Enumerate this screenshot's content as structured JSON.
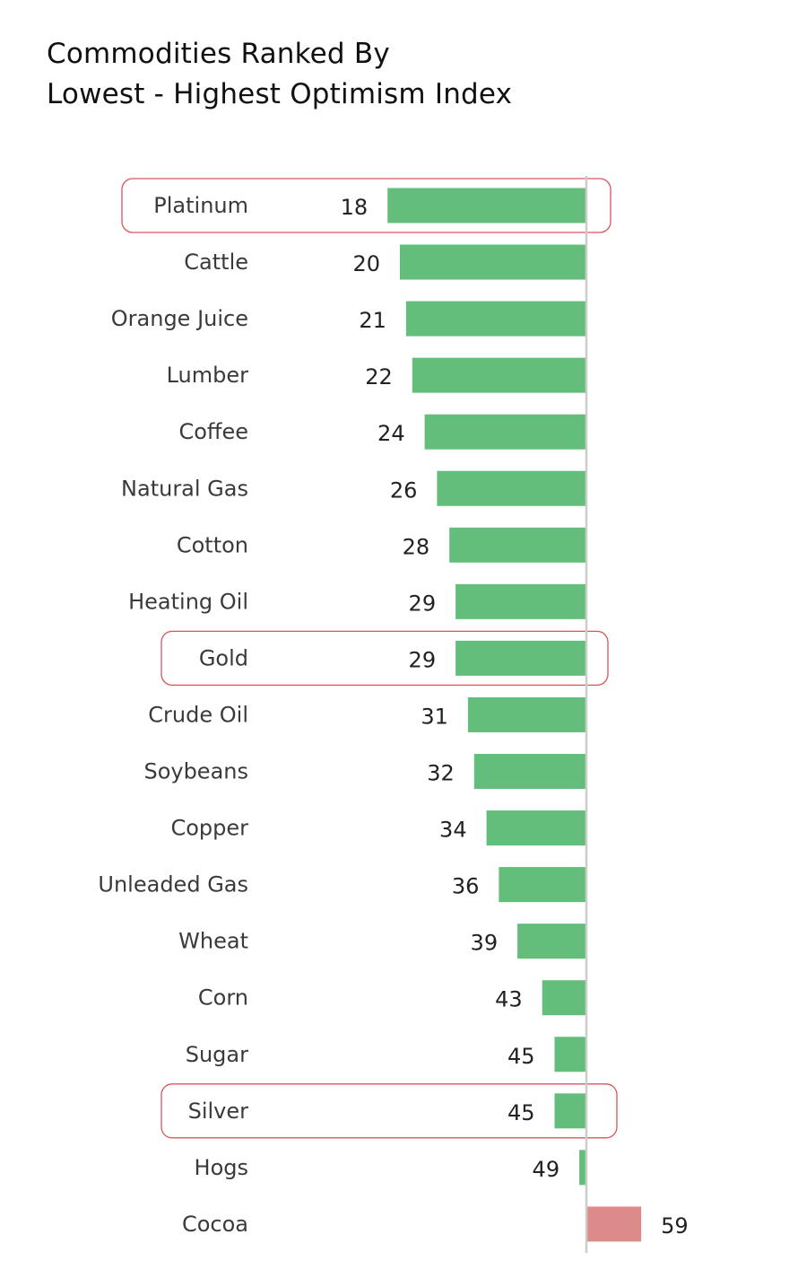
{
  "chart_data": {
    "type": "bar",
    "title_line1": "Commodities Ranked By",
    "title_line2": "Lowest - Highest Optimism Index",
    "xlabel": "",
    "ylabel": "",
    "baseline": 50,
    "categories": [
      "Platinum",
      "Cattle",
      "Orange Juice",
      "Lumber",
      "Coffee",
      "Natural Gas",
      "Cotton",
      "Heating Oil",
      "Gold",
      "Crude Oil",
      "Soybeans",
      "Copper",
      "Unleaded Gas",
      "Wheat",
      "Corn",
      "Sugar",
      "Silver",
      "Hogs",
      "Cocoa"
    ],
    "values": [
      18,
      20,
      21,
      22,
      24,
      26,
      28,
      29,
      29,
      31,
      32,
      34,
      36,
      39,
      43,
      45,
      45,
      49,
      59
    ],
    "highlighted": [
      "Platinum",
      "Gold",
      "Silver"
    ],
    "colors": {
      "below_baseline": "#63be7b",
      "above_baseline": "#dd8a8a",
      "highlight_outline": "#d9545a",
      "baseline_line": "#cccccc"
    },
    "grid": false,
    "legend": "none"
  }
}
